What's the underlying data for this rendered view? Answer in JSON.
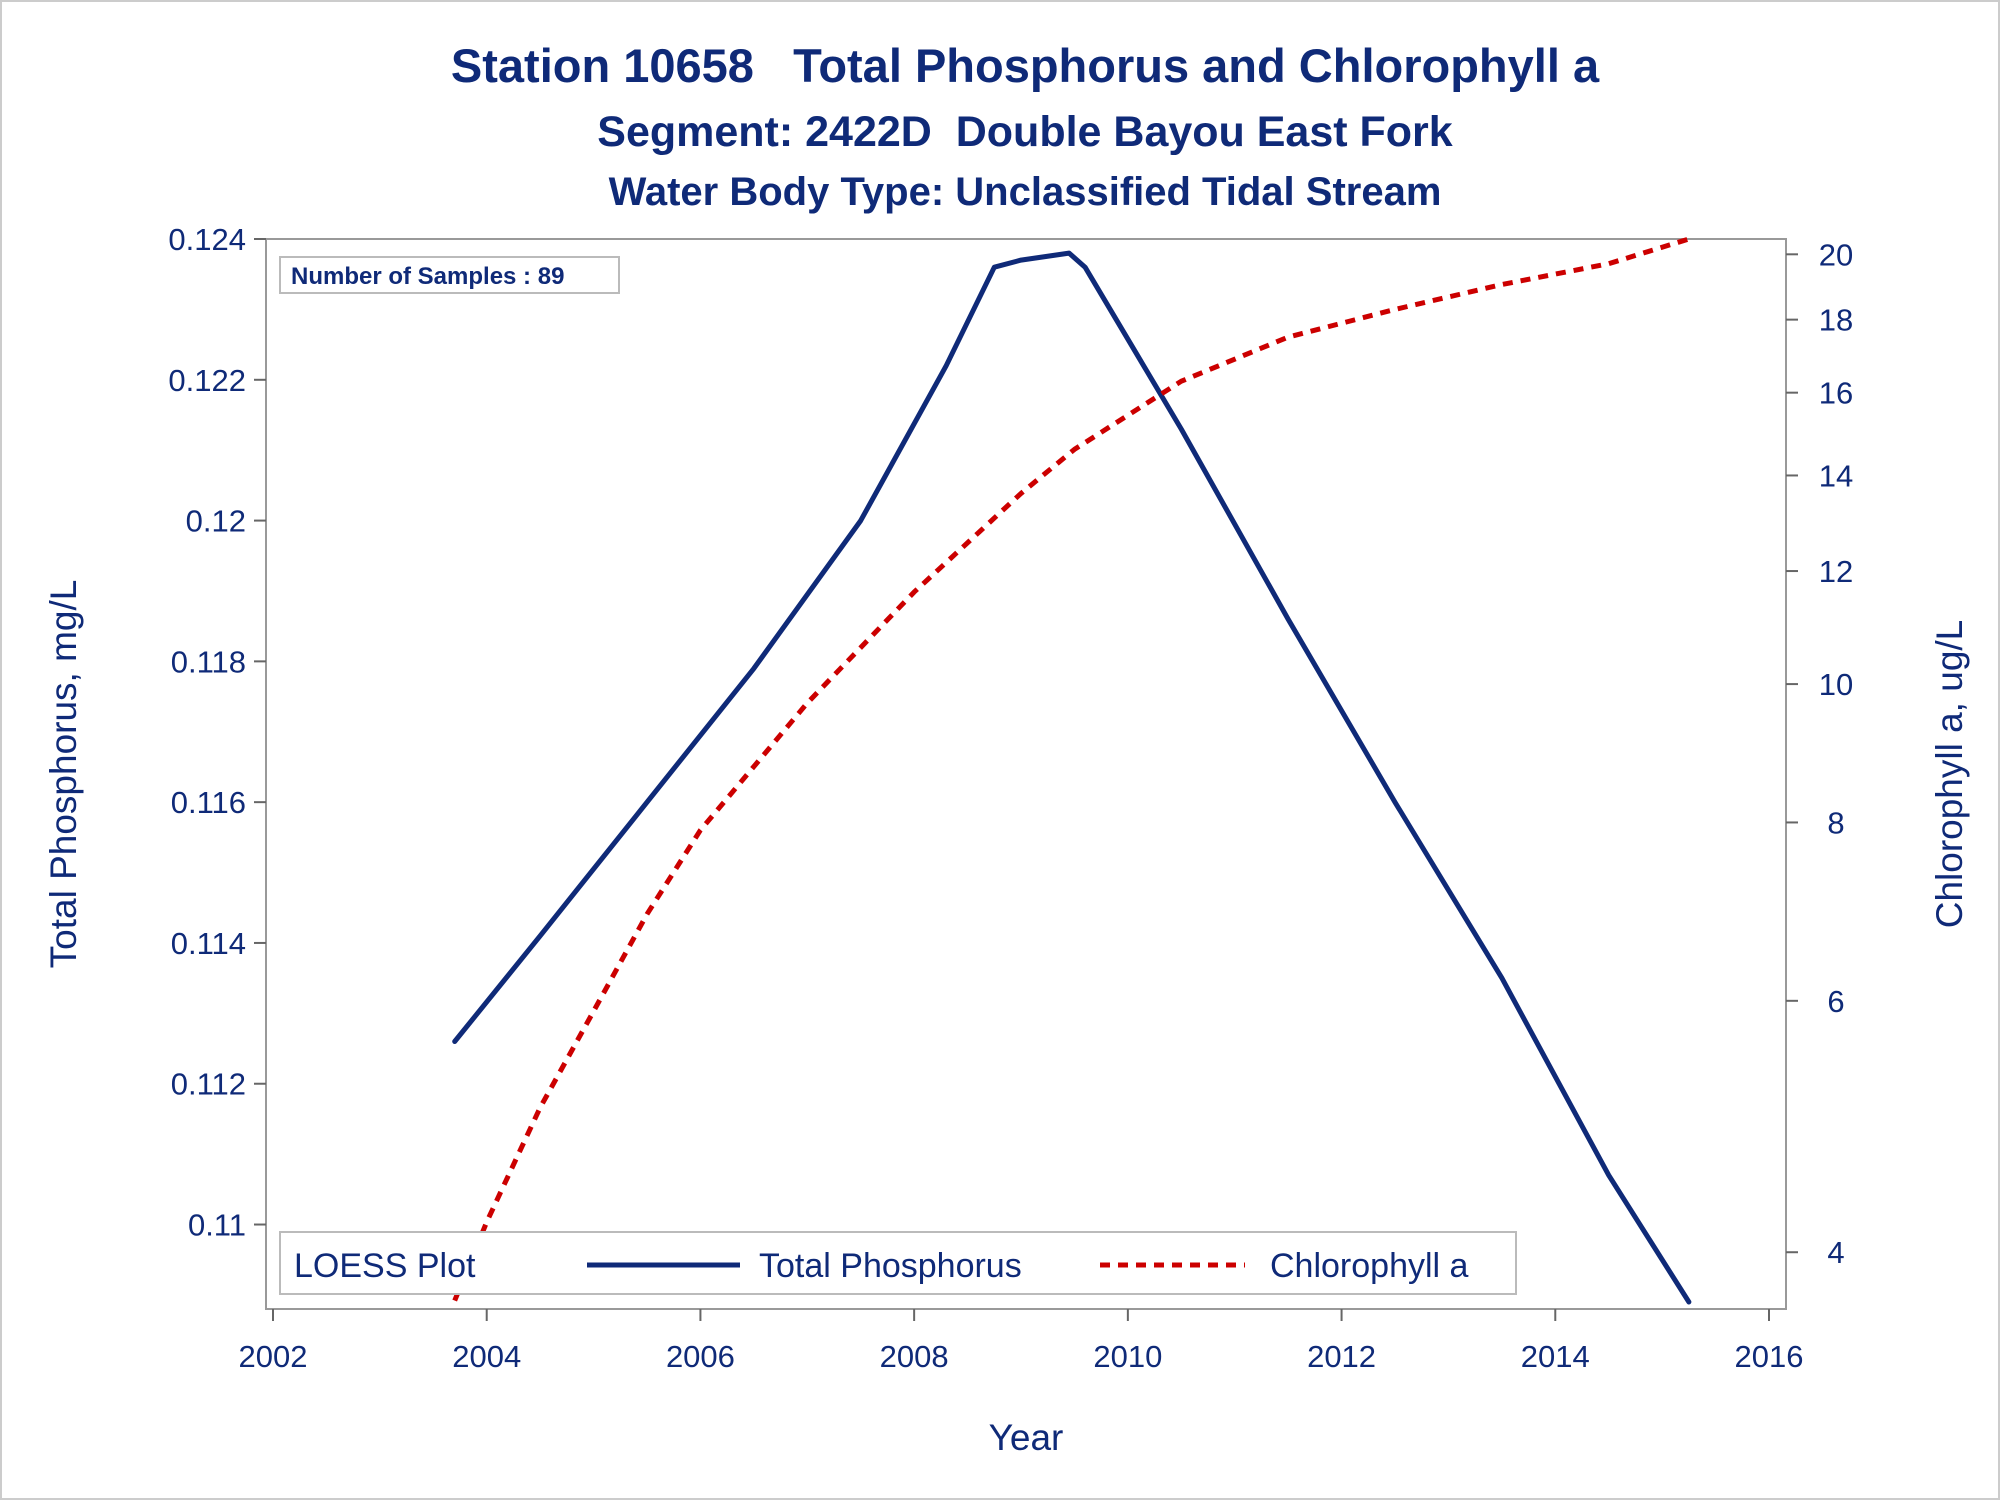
{
  "chart_data": {
    "type": "line",
    "title": "Station 10658   Total Phosphorus and Chlorophyll a",
    "subtitle": "Segment: 2422D  Double Bayou East Fork",
    "subtitle2": "Water Body Type: Unclassified Tidal Stream",
    "xlabel": "Year",
    "ylabel": "Total Phosphorus, mg/L",
    "y2label": "Chlorophyll a, ug/L",
    "xlim": [
      2002,
      2016
    ],
    "ylim": [
      0.1088,
      0.124
    ],
    "y2lim": [
      3.65,
      20.5
    ],
    "y2scale": "log",
    "x_ticks": [
      "2002",
      "2004",
      "2006",
      "2008",
      "2010",
      "2012",
      "2014",
      "2016"
    ],
    "y_ticks": [
      "0.11",
      "0.112",
      "0.114",
      "0.116",
      "0.118",
      "0.12",
      "0.122",
      "0.124"
    ],
    "y2_ticks": [
      "4",
      "6",
      "8",
      "10",
      "12",
      "14",
      "16",
      "18",
      "20"
    ],
    "grid": false,
    "annotation": "Number of Samples : 89",
    "legend": {
      "title": "LOESS Plot",
      "position": "bottom-inside",
      "entries": [
        "Total Phosphorus",
        "Chlorophyll a"
      ]
    },
    "colors": {
      "total_phosphorus": "#0f2a78",
      "chlorophyll_a": "#cc0000",
      "text": "#0f2a78",
      "frame": "#999999"
    },
    "series": [
      {
        "name": "Total Phosphorus",
        "axis": "left",
        "style": "solid",
        "x": [
          2003.7,
          2004.5,
          2005.5,
          2006.5,
          2007.5,
          2008.3,
          2008.75,
          2009.0,
          2009.45,
          2009.6,
          2010.5,
          2011.5,
          2012.5,
          2013.5,
          2014.5,
          2015.25
        ],
        "y": [
          0.1126,
          0.1141,
          0.116,
          0.1179,
          0.12,
          0.1222,
          0.1236,
          0.1237,
          0.1238,
          0.1236,
          0.1213,
          0.1186,
          0.116,
          0.1135,
          0.1107,
          0.1089
        ]
      },
      {
        "name": "Chlorophyll a",
        "axis": "right",
        "style": "dashed",
        "x": [
          2003.7,
          2004.0,
          2004.5,
          2005.0,
          2005.5,
          2006.0,
          2007.0,
          2008.0,
          2009.0,
          2009.5,
          2010.5,
          2011.5,
          2012.5,
          2013.5,
          2014.5,
          2015.25
        ],
        "y": [
          3.7,
          4.2,
          5.05,
          5.9,
          6.9,
          7.9,
          9.7,
          11.6,
          13.6,
          14.6,
          16.3,
          17.5,
          18.3,
          19.05,
          19.7,
          20.5
        ]
      }
    ]
  }
}
